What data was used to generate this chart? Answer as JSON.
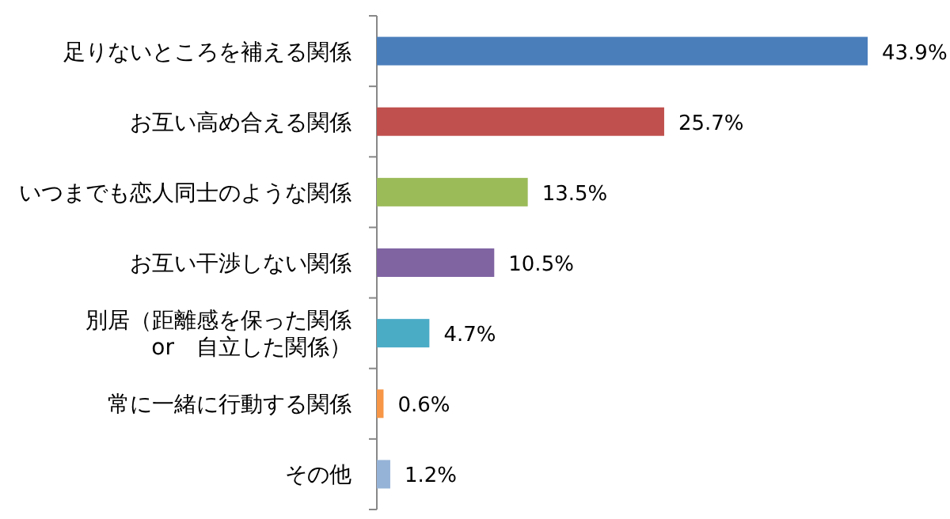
{
  "chart_data": {
    "type": "bar",
    "orientation": "horizontal",
    "categories": [
      "足りないところを補える関係",
      "お互い高め合える関係",
      "いつまでも恋人同士のような関係",
      "お互い干渉しない関係",
      "別居（距離感を保った関係\nor　自立した関係）",
      "常に一緒に行動する関係",
      "その他"
    ],
    "values": [
      43.9,
      25.7,
      13.5,
      10.5,
      4.7,
      0.6,
      1.2
    ],
    "colors": [
      "#4a7ebb",
      "#c0504d",
      "#9bbb59",
      "#8064a2",
      "#4bacc6",
      "#f79646",
      "#95b3d7"
    ],
    "value_labels": [
      "43.9%",
      "25.7%",
      "13.5%",
      "10.5%",
      "4.7%",
      "0.6%",
      "1.2%"
    ]
  }
}
